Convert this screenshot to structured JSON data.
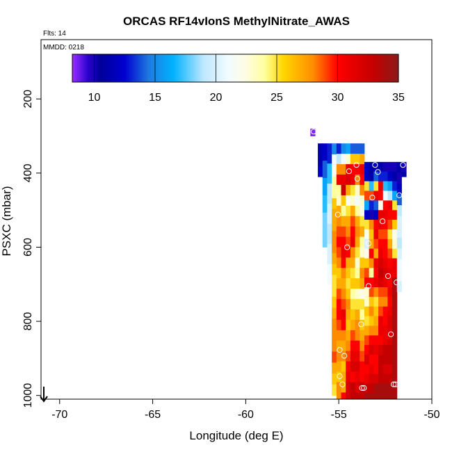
{
  "chart_data": {
    "type": "heatmap",
    "title": "ORCAS RF14vIonS MethylNitrate_AWAS",
    "flights_label": "Flts: 14",
    "date_label": "MMDD: 0218",
    "xlabel": "Longitude (deg E)",
    "ylabel": "PSXC (mbar)",
    "xlim": [
      -71,
      -50
    ],
    "ylim": [
      1010,
      40
    ],
    "x_ticks": [
      -70,
      -65,
      -60,
      -55,
      -50
    ],
    "x_tick_labels": [
      "-70",
      "-65",
      "-60",
      "-55",
      "-50"
    ],
    "y_ticks": [
      200,
      400,
      600,
      800,
      1000
    ],
    "y_tick_labels": [
      "200",
      "400",
      "600",
      "800",
      "1000"
    ],
    "colorbar": {
      "min": 8.2,
      "max": 35,
      "ticks": [
        10,
        15,
        20,
        25,
        30,
        35
      ],
      "tick_labels": [
        "10",
        "15",
        "20",
        "25",
        "30",
        "35"
      ],
      "stops": [
        [
          8.2,
          "#9b30ff"
        ],
        [
          9.5,
          "#2a00d0"
        ],
        [
          10.5,
          "#00009a"
        ],
        [
          12.5,
          "#0000d0"
        ],
        [
          14.5,
          "#1e7be0"
        ],
        [
          16.5,
          "#00b2ff"
        ],
        [
          19,
          "#bfe8ff"
        ],
        [
          21,
          "#f2fbff"
        ],
        [
          22.5,
          "#fffce0"
        ],
        [
          24,
          "#ffffa0"
        ],
        [
          25.5,
          "#ffd700"
        ],
        [
          28,
          "#ff8c00"
        ],
        [
          30,
          "#ff0000"
        ],
        [
          33,
          "#c40000"
        ],
        [
          35,
          "#8b1a1a"
        ]
      ]
    },
    "columns": [
      {
        "lon": -56.4,
        "values": [
          8.5
        ],
        "top": 280,
        "bottom": 300
      },
      {
        "lon": -56.0,
        "values": [
          11,
          11,
          12
        ],
        "top": 320,
        "bottom": 410
      },
      {
        "lon": -55.75,
        "values": [
          12,
          14,
          16,
          17,
          18,
          18
        ],
        "top": 320,
        "bottom": 600
      },
      {
        "lon": -55.5,
        "values": [
          13,
          17,
          19,
          20,
          19,
          20,
          21
        ],
        "top": 320,
        "bottom": 700
      },
      {
        "lon": -55.25,
        "values": [
          15,
          21,
          22,
          24,
          24,
          26,
          27,
          27,
          28,
          28,
          27,
          26,
          25,
          25,
          26,
          27,
          28,
          28,
          28,
          29,
          27,
          26,
          25
        ],
        "top": 320,
        "bottom": 1000
      },
      {
        "lon": -55.0,
        "values": [
          13,
          19,
          28,
          31,
          24,
          23,
          27,
          28,
          29,
          30,
          29,
          28,
          26,
          27,
          29,
          30,
          30,
          29,
          28,
          27,
          28,
          27,
          26,
          28,
          28
        ],
        "top": 320,
        "bottom": 1020
      },
      {
        "lon": -54.75,
        "values": [
          15,
          21,
          28,
          31,
          33,
          26,
          24,
          27,
          29,
          30,
          31,
          30,
          28,
          27,
          28,
          29,
          31,
          30,
          28,
          27,
          28,
          26,
          27,
          27,
          30
        ],
        "top": 320,
        "bottom": 1020
      },
      {
        "lon": -54.5,
        "values": [
          16,
          23,
          31,
          32,
          27,
          22,
          25,
          27,
          28,
          29,
          30,
          27,
          26,
          25,
          26,
          28,
          27,
          26,
          27,
          28,
          29,
          30,
          31,
          32,
          32
        ],
        "top": 320,
        "bottom": 1020
      },
      {
        "lon": -54.25,
        "values": [
          14,
          26,
          30,
          31,
          25,
          23,
          27,
          29,
          30,
          31,
          28,
          27,
          25,
          26,
          24,
          25,
          26,
          27,
          29,
          30,
          31,
          32,
          30,
          33,
          33
        ],
        "top": 320,
        "bottom": 1020
      },
      {
        "lon": -54.0,
        "values": [
          14,
          26,
          30,
          28,
          23,
          21,
          24,
          27,
          28,
          27,
          25,
          23,
          24,
          26,
          23,
          25,
          27,
          28,
          28,
          30,
          31,
          32,
          31,
          32,
          33
        ],
        "top": 320,
        "bottom": 1020
      },
      {
        "lon": -53.75,
        "values": [
          14,
          27,
          31,
          30,
          28,
          23,
          22,
          25,
          27,
          24,
          23,
          26,
          28,
          27,
          22,
          25,
          24,
          26,
          27,
          28,
          29,
          30,
          30,
          33,
          33
        ],
        "top": 320,
        "bottom": 1020
      },
      {
        "lon": -53.5,
        "values": [
          12,
          12,
          25,
          29,
          16,
          12,
          25,
          22,
          20,
          22,
          26,
          29,
          30,
          23,
          23,
          26,
          25,
          27,
          29,
          30,
          32,
          30,
          31,
          33,
          34
        ],
        "top": 370,
        "bottom": 1020
      },
      {
        "lon": -53.25,
        "values": [
          11,
          11,
          17,
          29,
          13,
          10,
          28,
          26,
          27,
          30,
          28,
          24,
          30,
          29,
          26,
          28,
          26,
          28,
          30,
          32,
          30,
          31,
          32,
          33,
          34
        ],
        "top": 370,
        "bottom": 1020
      },
      {
        "lon": -53.0,
        "values": [
          12,
          14,
          25,
          31,
          14,
          12,
          30,
          31,
          29,
          27,
          31,
          30,
          31,
          28,
          25,
          26,
          27,
          28,
          30,
          31,
          30,
          30,
          32,
          34,
          34
        ],
        "top": 370,
        "bottom": 1020
      },
      {
        "lon": -52.75,
        "values": [
          11,
          13,
          31,
          30,
          22,
          31,
          31,
          29,
          30,
          31,
          32,
          33,
          32,
          29,
          28,
          29,
          31,
          31,
          30,
          32,
          33,
          33,
          33,
          34,
          34
        ],
        "top": 370,
        "bottom": 1020
      },
      {
        "lon": -52.5,
        "values": [
          10,
          13,
          17,
          21,
          30,
          31,
          30,
          29,
          30,
          30,
          31,
          32,
          31,
          29,
          28,
          30,
          30,
          31,
          31,
          33,
          33,
          32,
          33,
          34,
          34
        ],
        "top": 370,
        "bottom": 1020
      },
      {
        "lon": -52.25,
        "values": [
          10,
          12,
          16,
          19,
          31,
          30,
          29,
          25,
          27,
          29,
          30,
          31,
          30,
          31,
          30,
          31,
          32,
          32,
          32,
          33,
          33,
          32,
          33,
          34,
          34
        ],
        "top": 370,
        "bottom": 1020
      },
      {
        "lon": -52.0,
        "values": [
          10,
          11,
          13,
          16,
          25,
          30,
          26,
          22,
          23,
          25,
          31,
          31,
          34,
          34,
          34,
          34,
          34,
          34,
          34,
          34,
          34,
          34,
          34,
          34,
          34
        ],
        "top": 370,
        "bottom": 1020
      },
      {
        "lon": -51.75,
        "values": [
          11,
          10,
          12,
          14,
          19,
          20,
          20,
          19,
          20,
          21,
          21,
          20
        ],
        "top": 370,
        "bottom": 720
      },
      {
        "lon": -51.5,
        "values": [
          10,
          10,
          11
        ],
        "top": 370,
        "bottom": 410
      }
    ],
    "points": [
      {
        "lon": -56.35,
        "p": 288
      },
      {
        "lon": -54.05,
        "p": 378
      },
      {
        "lon": -54.45,
        "p": 395
      },
      {
        "lon": -54.0,
        "p": 415
      },
      {
        "lon": -53.05,
        "p": 378
      },
      {
        "lon": -52.9,
        "p": 397
      },
      {
        "lon": -51.55,
        "p": 378
      },
      {
        "lon": -53.2,
        "p": 466
      },
      {
        "lon": -51.75,
        "p": 460
      },
      {
        "lon": -55.05,
        "p": 512
      },
      {
        "lon": -52.65,
        "p": 530
      },
      {
        "lon": -54.55,
        "p": 600
      },
      {
        "lon": -53.4,
        "p": 590
      },
      {
        "lon": -52.35,
        "p": 678
      },
      {
        "lon": -53.4,
        "p": 705
      },
      {
        "lon": -51.9,
        "p": 695
      },
      {
        "lon": -53.8,
        "p": 808
      },
      {
        "lon": -52.2,
        "p": 835
      },
      {
        "lon": -54.95,
        "p": 877
      },
      {
        "lon": -54.7,
        "p": 893
      },
      {
        "lon": -54.95,
        "p": 948
      },
      {
        "lon": -54.8,
        "p": 970
      },
      {
        "lon": -53.75,
        "p": 980
      },
      {
        "lon": -53.65,
        "p": 980
      },
      {
        "lon": -52.05,
        "p": 970
      },
      {
        "lon": -51.95,
        "p": 970
      }
    ]
  }
}
